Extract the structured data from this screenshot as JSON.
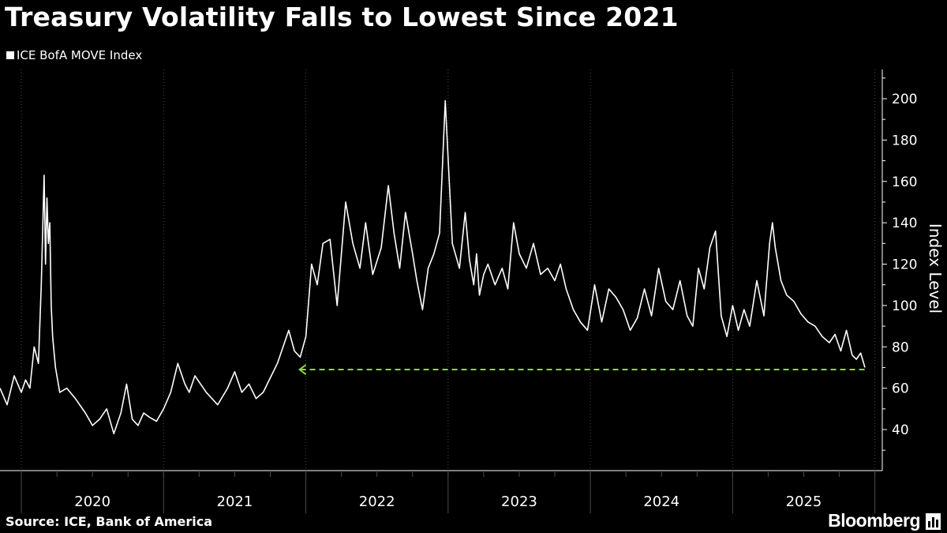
{
  "title": "Treasury Volatility Falls to Lowest Since 2021",
  "legend": "ICE BofA MOVE Index",
  "source": "Source: ICE, Bank of America",
  "brand": "Bloomberg",
  "colors": {
    "background": "#000000",
    "series": "#ffffff",
    "reference_line": "#8fd43c",
    "grid": "#4a4a4a"
  },
  "chart_data": {
    "type": "line",
    "title": "Treasury Volatility Falls to Lowest Since 2021",
    "ylabel": "Index Level",
    "xlabel": "",
    "ylim": [
      20,
      215
    ],
    "yticks": [
      40,
      60,
      80,
      100,
      120,
      140,
      160,
      180,
      200
    ],
    "xlim": [
      2019.85,
      2025.93
    ],
    "x_categories": [
      "2020",
      "2021",
      "2022",
      "2023",
      "2024",
      "2025"
    ],
    "series": [
      {
        "name": "ICE BofA MOVE Index",
        "x": [
          2019.85,
          2019.9,
          2019.95,
          2020.0,
          2020.03,
          2020.06,
          2020.09,
          2020.12,
          2020.14,
          2020.16,
          2020.17,
          2020.18,
          2020.19,
          2020.2,
          2020.21,
          2020.22,
          2020.24,
          2020.27,
          2020.32,
          2020.38,
          2020.45,
          2020.5,
          2020.55,
          2020.6,
          2020.65,
          2020.7,
          2020.74,
          2020.78,
          2020.82,
          2020.86,
          2020.9,
          2020.95,
          2021.0,
          2021.05,
          2021.1,
          2021.12,
          2021.15,
          2021.18,
          2021.22,
          2021.3,
          2021.38,
          2021.45,
          2021.5,
          2021.55,
          2021.6,
          2021.65,
          2021.7,
          2021.75,
          2021.8,
          2021.84,
          2021.88,
          2021.92,
          2021.96,
          2022.0,
          2022.04,
          2022.08,
          2022.12,
          2022.17,
          2022.22,
          2022.28,
          2022.33,
          2022.38,
          2022.42,
          2022.47,
          2022.53,
          2022.58,
          2022.62,
          2022.66,
          2022.7,
          2022.75,
          2022.78,
          2022.82,
          2022.86,
          2022.9,
          2022.94,
          2022.98,
          2023.03,
          2023.08,
          2023.12,
          2023.15,
          2023.18,
          2023.2,
          2023.22,
          2023.25,
          2023.28,
          2023.33,
          2023.38,
          2023.42,
          2023.46,
          2023.5,
          2023.55,
          2023.6,
          2023.65,
          2023.7,
          2023.75,
          2023.79,
          2023.83,
          2023.88,
          2023.93,
          2023.98,
          2024.03,
          2024.08,
          2024.13,
          2024.18,
          2024.23,
          2024.28,
          2024.33,
          2024.38,
          2024.43,
          2024.48,
          2024.53,
          2024.58,
          2024.63,
          2024.68,
          2024.72,
          2024.76,
          2024.8,
          2024.84,
          2024.88,
          2024.92,
          2024.96,
          2025.0,
          2025.04,
          2025.08,
          2025.12,
          2025.17,
          2025.22,
          2025.26,
          2025.28,
          2025.3,
          2025.34,
          2025.38,
          2025.43,
          2025.48,
          2025.53,
          2025.58,
          2025.63,
          2025.68,
          2025.72,
          2025.76,
          2025.8,
          2025.84,
          2025.87,
          2025.9,
          2025.93
        ],
        "y": [
          60,
          52,
          66,
          58,
          64,
          60,
          80,
          72,
          110,
          163,
          120,
          152,
          130,
          140,
          100,
          85,
          70,
          58,
          60,
          55,
          48,
          42,
          45,
          50,
          38,
          48,
          62,
          45,
          42,
          48,
          46,
          44,
          50,
          58,
          72,
          68,
          62,
          58,
          66,
          58,
          52,
          60,
          68,
          58,
          62,
          55,
          58,
          65,
          72,
          80,
          88,
          78,
          75,
          85,
          120,
          110,
          130,
          132,
          100,
          150,
          130,
          118,
          140,
          115,
          128,
          158,
          135,
          118,
          145,
          125,
          112,
          98,
          118,
          125,
          135,
          199,
          130,
          118,
          145,
          122,
          110,
          125,
          105,
          115,
          120,
          110,
          118,
          108,
          140,
          125,
          118,
          130,
          115,
          118,
          112,
          120,
          108,
          98,
          92,
          88,
          110,
          92,
          108,
          104,
          98,
          88,
          94,
          108,
          95,
          118,
          102,
          98,
          112,
          95,
          90,
          118,
          108,
          128,
          136,
          95,
          85,
          100,
          88,
          98,
          90,
          112,
          95,
          130,
          140,
          128,
          112,
          105,
          102,
          96,
          92,
          90,
          85,
          82,
          86,
          78,
          88,
          76,
          74,
          77,
          70
        ]
      }
    ],
    "reference_line": {
      "y": 69,
      "x_from": 2021.95,
      "x_to": 2025.93
    }
  }
}
